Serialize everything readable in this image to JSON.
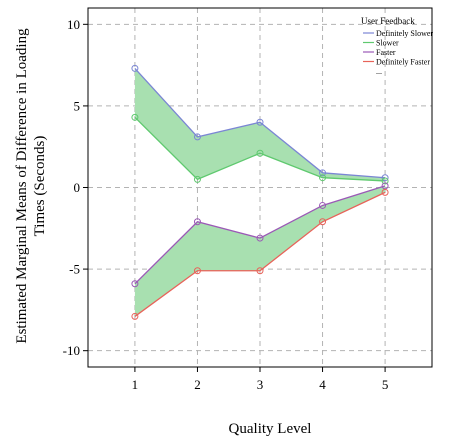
{
  "chart_data": {
    "type": "line",
    "xlabel": "Quality Level",
    "ylabel": "Estimated Marginal Means of Difference in Loading Times (Seconds)",
    "categories": [
      1,
      2,
      3,
      4,
      5
    ],
    "xlim": [
      0.25,
      5.75
    ],
    "ylim": [
      -11,
      11
    ],
    "yticks": [
      -10,
      -5,
      0,
      5,
      10
    ],
    "grid": true,
    "legend": {
      "title": "User Feedback",
      "placement": "top-right",
      "entries": [
        "Definitely Slower",
        "Slower",
        "Faster",
        "Definitely Faster",
        "..."
      ]
    },
    "fill_color": "#a8e0b0",
    "series": [
      {
        "name": "Definitely Slower",
        "color": "#7b86d4",
        "values": [
          7.3,
          3.1,
          4.0,
          0.9,
          0.6
        ]
      },
      {
        "name": "Slower",
        "color": "#5fc96f",
        "values": [
          4.3,
          0.5,
          2.1,
          0.6,
          0.4
        ]
      },
      {
        "name": "Faster",
        "color": "#9b59b6",
        "values": [
          -5.9,
          -2.1,
          -3.1,
          -1.1,
          0.1
        ]
      },
      {
        "name": "Definitely Faster",
        "color": "#e8635a",
        "values": [
          -7.9,
          -5.1,
          -5.1,
          -2.1,
          -0.3
        ]
      }
    ],
    "fill_between": [
      [
        0,
        1
      ],
      [
        2,
        3
      ]
    ]
  }
}
